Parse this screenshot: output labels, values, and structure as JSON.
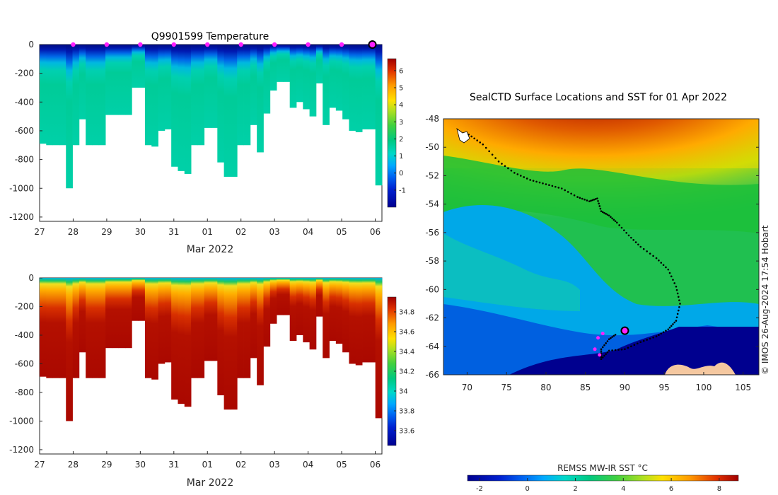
{
  "figure_title": "Q9901599  Temperature",
  "map_title": "SealCTD Surface Locations and SST for 01 Apr 2022",
  "watermark": "© IMOS 26-Aug-2024 17:54 Hobart",
  "sst_colorbar_label": "REMSS MW-IR SST °C",
  "chart_data": [
    {
      "id": "temperature-section",
      "type": "heatmap",
      "title": "Q9901599  Temperature",
      "xlabel": "Mar 2022",
      "x_ticks": [
        "27",
        "28",
        "29",
        "30",
        "31",
        "01",
        "02",
        "03",
        "04",
        "05",
        "06"
      ],
      "y_ticks": [
        0,
        -200,
        -400,
        -600,
        -800,
        -1000,
        -1200
      ],
      "ylim": [
        -1230,
        0
      ],
      "colorbar_ticks": [
        6,
        5,
        4,
        3,
        2,
        1,
        0,
        -1
      ],
      "colorbar_range": [
        -2,
        6.7
      ],
      "profile_markers_x": [
        28,
        29,
        30,
        31,
        32,
        33,
        34,
        35,
        36
      ],
      "latest_marker_x": 37,
      "profile_max_depth": [
        -690,
        -700,
        -700,
        -700,
        -1000,
        -700,
        -520,
        -700,
        -700,
        -700,
        -490,
        -490,
        -490,
        -490,
        -300,
        -300,
        -700,
        -710,
        -600,
        -590,
        -850,
        -880,
        -900,
        -700,
        -700,
        -580,
        -580,
        -820,
        -920,
        -920,
        -700,
        -700,
        -560,
        -750,
        -480,
        -320,
        -260,
        -260,
        -440,
        -400,
        -450,
        -500,
        -270,
        -560,
        -440,
        -460,
        -520,
        -600,
        -610,
        -590,
        -590,
        -980
      ]
    },
    {
      "id": "salinity-section",
      "type": "heatmap",
      "title": "",
      "xlabel": "Mar 2022",
      "x_ticks": [
        "27",
        "28",
        "29",
        "30",
        "31",
        "01",
        "02",
        "03",
        "04",
        "05",
        "06"
      ],
      "y_ticks": [
        0,
        -200,
        -400,
        -600,
        -800,
        -1000,
        -1200
      ],
      "ylim": [
        -1230,
        0
      ],
      "colorbar_ticks": [
        "34.8",
        "34.6",
        "34.4",
        "34.2",
        "34",
        "33.8",
        "33.6"
      ],
      "colorbar_range": [
        33.45,
        34.95
      ]
    },
    {
      "id": "sst-map",
      "type": "heatmap",
      "title": "SealCTD Surface Locations and SST for 01 Apr 2022",
      "x_ticks": [
        70,
        75,
        80,
        85,
        90,
        95,
        100,
        105
      ],
      "y_ticks": [
        -48,
        -50,
        -52,
        -54,
        -56,
        -58,
        -60,
        -62,
        -64,
        -66
      ],
      "xlim": [
        67,
        107
      ],
      "ylim": [
        -66,
        -48
      ],
      "colorbar_label": "REMSS MW-IR SST °C",
      "colorbar_ticks": [
        -2,
        0,
        2,
        4,
        6,
        8
      ],
      "colorbar_range": [
        -2.5,
        8.8
      ],
      "track": [
        [
          70.2,
          -49.1
        ],
        [
          72,
          -49.8
        ],
        [
          74,
          -51
        ],
        [
          76,
          -51.8
        ],
        [
          78,
          -52.3
        ],
        [
          80,
          -52.6
        ],
        [
          82,
          -52.9
        ],
        [
          84,
          -53.5
        ],
        [
          85.5,
          -53.8
        ],
        [
          86.5,
          -53.6
        ],
        [
          87,
          -54.5
        ],
        [
          88,
          -54.8
        ],
        [
          89,
          -55.3
        ],
        [
          90.5,
          -56.2
        ],
        [
          92,
          -57
        ],
        [
          94,
          -57.8
        ],
        [
          95.5,
          -58.6
        ],
        [
          96.5,
          -59.8
        ],
        [
          97,
          -61
        ],
        [
          96.5,
          -62.2
        ],
        [
          95.5,
          -62.8
        ],
        [
          94,
          -63.3
        ],
        [
          92,
          -63.7
        ],
        [
          90,
          -64.2
        ],
        [
          88,
          -64.3
        ],
        [
          87,
          -64.9
        ],
        [
          87,
          -64.2
        ],
        [
          88,
          -63.5
        ],
        [
          89,
          -63.1
        ]
      ],
      "recent_points": [
        [
          86.6,
          -63.4
        ],
        [
          87.2,
          -63.1
        ],
        [
          86.2,
          -64.2
        ],
        [
          86.8,
          -64.6
        ]
      ],
      "current_position": [
        90,
        -62.9
      ]
    }
  ]
}
